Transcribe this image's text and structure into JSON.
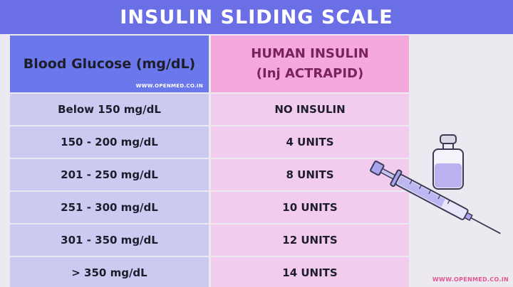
{
  "title": "INSULIN SLIDING SCALE",
  "header": {
    "left": "Blood Glucose (mg/dL)",
    "right_line1": "HUMAN INSULIN",
    "right_line2": "(Inj ACTRAPID)",
    "watermark": "WWW.OPENMED.CO.IN"
  },
  "rows": [
    {
      "glucose": "Below 150 mg/dL",
      "dose": "NO INSULIN"
    },
    {
      "glucose": "150 - 200 mg/dL",
      "dose": "4 UNITS"
    },
    {
      "glucose": "201 - 250 mg/dL",
      "dose": "8 UNITS"
    },
    {
      "glucose": "251 - 300 mg/dL",
      "dose": "10 UNITS"
    },
    {
      "glucose": "301 - 350 mg/dL",
      "dose": "12 UNITS"
    },
    {
      "glucose": "> 350 mg/dL",
      "dose": "14 UNITS"
    }
  ],
  "footer_watermark": "WWW.OPENMED.CO.IN",
  "icons": [
    "syringe-icon",
    "vial-icon"
  ],
  "colors": {
    "title_bg": "#6b6fe6",
    "left_header_bg": "#6b78ec",
    "right_header_bg": "#f4a8dc",
    "left_cell_bg": "#cdcaf2",
    "right_cell_bg": "#f2ccee",
    "right_header_text": "#7a2358"
  }
}
